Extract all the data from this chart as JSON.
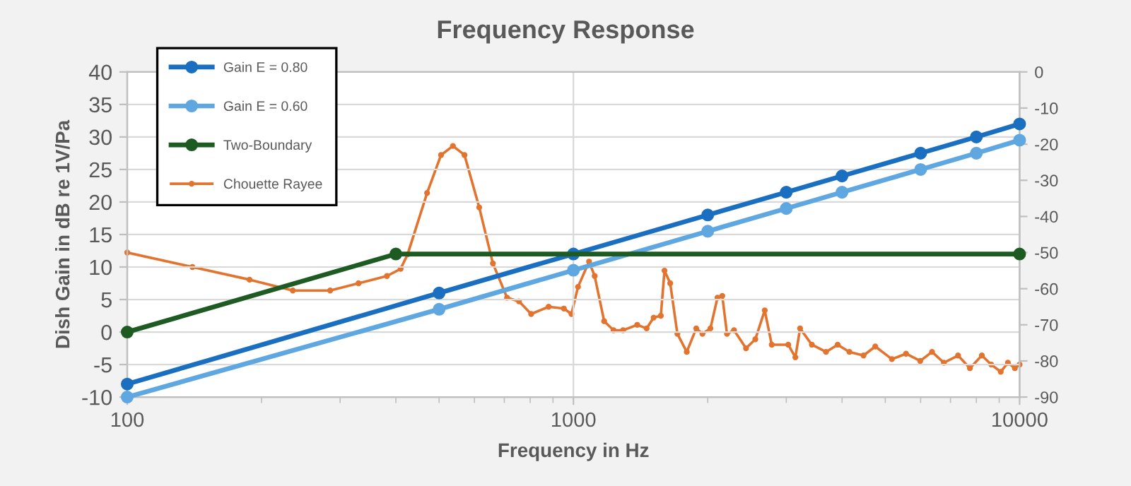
{
  "chart_data": {
    "type": "line",
    "title": "Frequency Response",
    "xlabel": "Frequency in Hz",
    "ylabel": "Dish Gain in dB re 1V/Pa",
    "log": "x",
    "xlim": [
      100,
      10000
    ],
    "xticks": [
      100,
      1000,
      10000
    ],
    "ylim": [
      -10,
      40
    ],
    "yticks": [
      -10,
      -5,
      0,
      5,
      10,
      15,
      20,
      25,
      30,
      35,
      40
    ],
    "y2lim": [
      -90,
      0
    ],
    "y2ticks": [
      -90,
      -80,
      -70,
      -60,
      -50,
      -40,
      -30,
      -20,
      -10,
      0
    ],
    "grid": true,
    "legend": "top left",
    "marker": "circle",
    "series": [
      {
        "name": "Gain E = 0.80",
        "color": "#1a6fc0",
        "x": [
          100,
          500,
          1000,
          2000,
          3000,
          4000,
          6000,
          8000,
          10000
        ],
        "values": [
          -8,
          6,
          12,
          18,
          21.5,
          24,
          27.5,
          30,
          32
        ]
      },
      {
        "name": "Gain E = 0.60",
        "color": "#5ea7e0",
        "x": [
          100,
          500,
          1000,
          2000,
          3000,
          4000,
          6000,
          8000,
          10000
        ],
        "values": [
          -10,
          3.5,
          9.5,
          15.5,
          19,
          21.5,
          25,
          27.5,
          29.5
        ]
      },
      {
        "name": "Two-Boundary",
        "color": "#1e5b22",
        "x": [
          100,
          400,
          10000
        ],
        "values": [
          0,
          12,
          12
        ]
      },
      {
        "name": "Chouette Rayee",
        "color": "#e2742f",
        "axis": "y2",
        "x": [
          100,
          140,
          188,
          235,
          285,
          330,
          382,
          410,
          425,
          470,
          505,
          537,
          570,
          615,
          660,
          710,
          755,
          804,
          880,
          952,
          990,
          1024,
          1084,
          1116,
          1172,
          1230,
          1292,
          1390,
          1459,
          1513,
          1570,
          1600,
          1648,
          1710,
          1795,
          1885,
          1946,
          2028,
          2103,
          2156,
          2209,
          2291,
          2437,
          2557,
          2684,
          2783,
          3030,
          3144,
          3221,
          3423,
          3682,
          3911,
          4155,
          4469,
          4748,
          5174,
          5566,
          5988,
          6364,
          6766,
          7279,
          7738,
          8230,
          8637,
          9072,
          9413,
          9759,
          10000
        ],
        "values": [
          -50,
          -54,
          -57.5,
          -60.5,
          -60.5,
          -58.5,
          -56.5,
          -54.5,
          -50.5,
          -33.5,
          -23,
          -20.5,
          -23,
          -37.5,
          -53,
          -62.5,
          -63.5,
          -67,
          -65,
          -65.5,
          -67,
          -59.5,
          -52.5,
          -56.5,
          -69,
          -71.5,
          -71.5,
          -70,
          -71,
          -68,
          -67.5,
          -55,
          -58.5,
          -72.5,
          -77.5,
          -71,
          -72.5,
          -71,
          -62.5,
          -62,
          -72.5,
          -71.5,
          -76.5,
          -74,
          -66,
          -75.5,
          -75.5,
          -79,
          -71,
          -75.5,
          -77.5,
          -75.5,
          -77.5,
          -78.5,
          -76,
          -79.5,
          -78,
          -80,
          -77.5,
          -80.5,
          -78.5,
          -82,
          -78.5,
          -81,
          -83,
          -80.5,
          -82,
          -81
        ]
      }
    ]
  }
}
